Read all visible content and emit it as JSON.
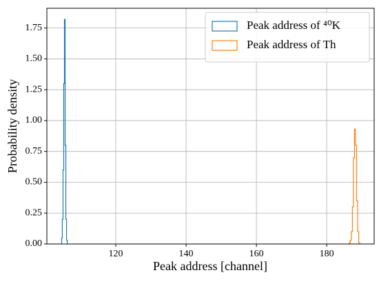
{
  "chart_data": {
    "type": "histogram",
    "xlabel": "Peak address [channel]",
    "ylabel": "Probability density",
    "xlim": [
      100.4,
      193.5
    ],
    "ylim": [
      0,
      1.91
    ],
    "xticks": [
      120,
      140,
      160,
      180
    ],
    "yticks": [
      {
        "value": 0,
        "label": "0.00"
      },
      {
        "value": 0.25,
        "label": "0.25"
      },
      {
        "value": 0.5,
        "label": "0.50"
      },
      {
        "value": 0.75,
        "label": "0.75"
      },
      {
        "value": 1,
        "label": "1.00"
      },
      {
        "value": 1.25,
        "label": "1.25"
      },
      {
        "value": 1.5,
        "label": "1.50"
      },
      {
        "value": 1.75,
        "label": "1.75"
      }
    ],
    "grid": true,
    "legend": "upper right",
    "series": [
      {
        "name": "Peak address of ⁴⁰K",
        "color": "#1f77b4",
        "bins": [
          104.6,
          104.8,
          105.0,
          105.2,
          105.4,
          105.6,
          105.8,
          106.0,
          106.2
        ],
        "values": [
          0.05,
          0.2,
          0.6,
          1.3,
          1.82,
          0.8,
          0.2,
          0.03
        ]
      },
      {
        "name": "Peak address of Th",
        "color": "#ff7f0e",
        "bins": [
          186.4,
          186.7,
          187.0,
          187.3,
          187.6,
          187.9,
          188.2,
          188.5,
          188.8,
          189.1,
          189.4
        ],
        "values": [
          0.01,
          0.03,
          0.1,
          0.3,
          0.7,
          0.93,
          0.8,
          0.35,
          0.1,
          0.01
        ]
      }
    ]
  }
}
